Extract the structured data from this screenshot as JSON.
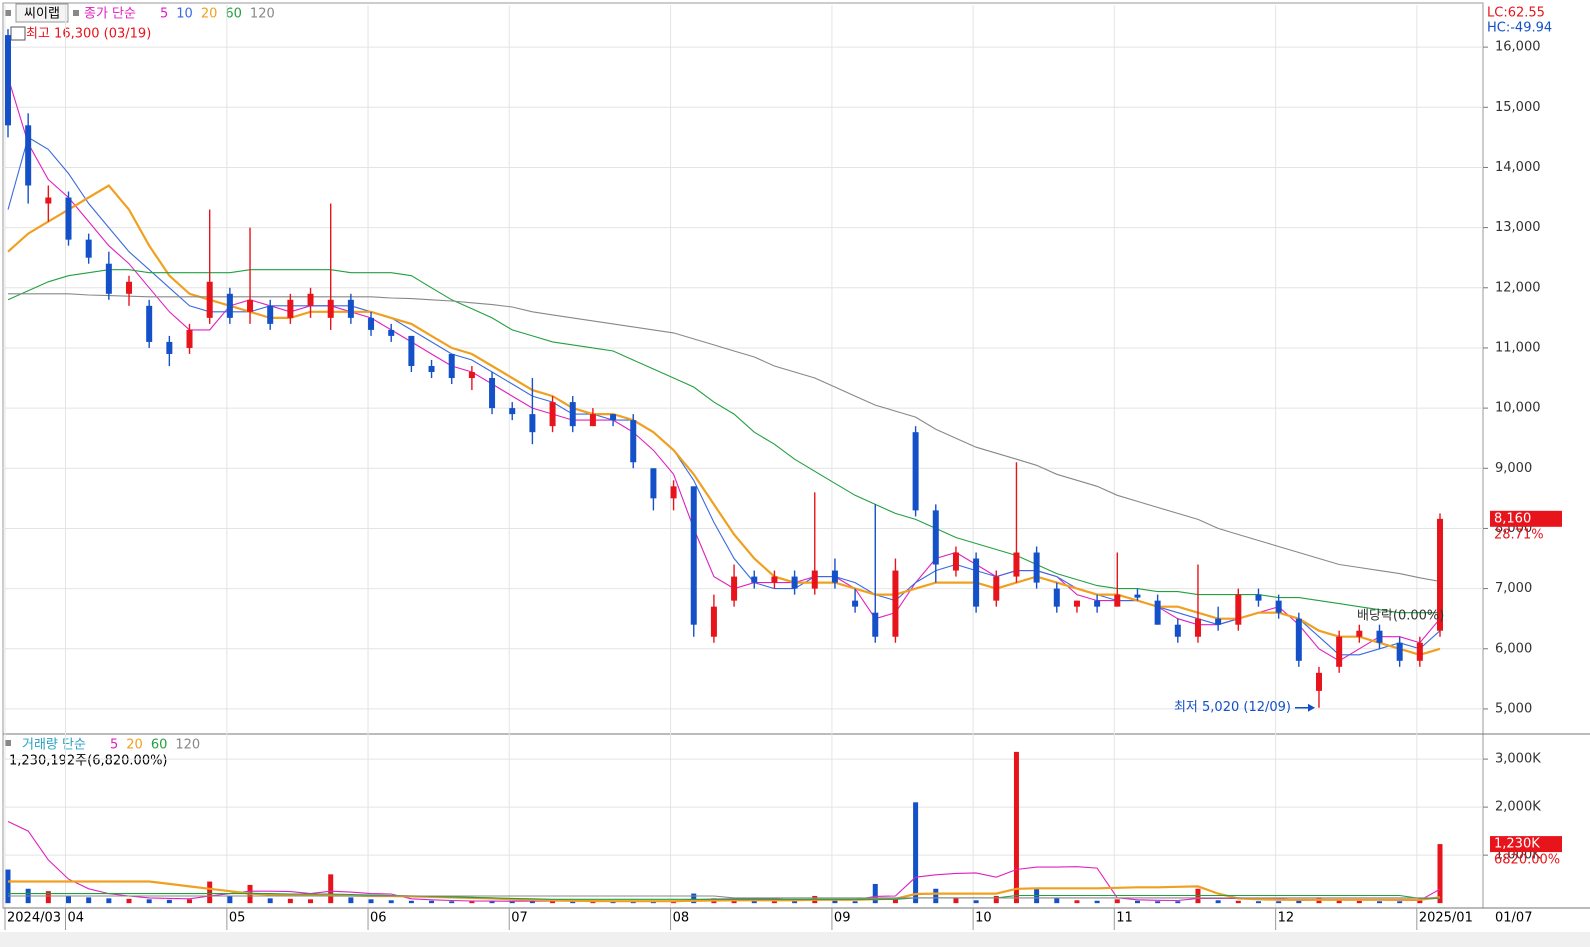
{
  "chart_data": {
    "type": "candlestick",
    "title": "씨이랩",
    "legend_label": "종가 단순",
    "categories": [
      "2024/03",
      null,
      null,
      "04",
      null,
      null,
      null,
      null,
      null,
      null,
      null,
      "05",
      null,
      null,
      null,
      null,
      null,
      null,
      "06",
      null,
      null,
      null,
      null,
      null,
      null,
      "07",
      null,
      null,
      null,
      null,
      null,
      null,
      null,
      "08",
      null,
      null,
      null,
      null,
      null,
      null,
      null,
      "09",
      null,
      null,
      null,
      null,
      null,
      null,
      "10",
      null,
      null,
      null,
      null,
      null,
      null,
      "11",
      null,
      null,
      null,
      null,
      null,
      null,
      null,
      "12",
      null,
      null,
      null,
      null,
      null,
      null,
      "2025/01",
      null
    ],
    "current_date": "01/07",
    "up_color": "#e8141b",
    "down_color": "#1450c8",
    "open": [
      16200,
      14700,
      13400,
      13500,
      12800,
      12400,
      11900,
      11700,
      11100,
      11000,
      11500,
      11900,
      11600,
      11700,
      11500,
      11700,
      11500,
      11800,
      11500,
      11300,
      11200,
      10700,
      10900,
      10500,
      10500,
      10000,
      9900,
      9700,
      10100,
      9700,
      9900,
      9800,
      9000,
      8500,
      8700,
      6200,
      6800,
      7200,
      7100,
      7200,
      7000,
      7300,
      6800,
      6600,
      6200,
      9600,
      8300,
      7300,
      7500,
      6800,
      7200,
      7600,
      7000,
      6700,
      6800,
      6700,
      6900,
      6800,
      6400,
      6200,
      6500,
      6400,
      6900,
      6800,
      6500,
      5300,
      5700,
      6200,
      6300,
      6100,
      5800,
      6300
    ],
    "high": [
      16300,
      14900,
      13700,
      13600,
      12900,
      12600,
      12200,
      11800,
      11200,
      11400,
      13300,
      12000,
      13000,
      11800,
      11900,
      12000,
      13400,
      11900,
      11600,
      11400,
      11200,
      10800,
      10900,
      10700,
      10600,
      10100,
      10500,
      10200,
      10200,
      10000,
      9900,
      9900,
      9000,
      8800,
      8700,
      6900,
      7400,
      7300,
      7300,
      7300,
      8600,
      7500,
      7000,
      8400,
      7500,
      9700,
      8400,
      7700,
      7600,
      7300,
      9100,
      7700,
      7100,
      6800,
      6900,
      7600,
      7000,
      6900,
      6500,
      7400,
      6700,
      7000,
      7000,
      6900,
      6600,
      5700,
      6300,
      6400,
      6400,
      6200,
      6200,
      8250
    ],
    "low": [
      14500,
      13400,
      13100,
      12700,
      12400,
      11800,
      11700,
      11000,
      10700,
      10900,
      11400,
      11400,
      11400,
      11300,
      11400,
      11500,
      11300,
      11400,
      11200,
      11100,
      10600,
      10500,
      10400,
      10300,
      9900,
      9800,
      9400,
      9600,
      9600,
      9700,
      9700,
      9000,
      8300,
      8300,
      6200,
      6100,
      6700,
      7000,
      7000,
      6900,
      6900,
      7000,
      6600,
      6100,
      6100,
      8200,
      7100,
      7200,
      6600,
      6700,
      7100,
      7000,
      6600,
      6600,
      6600,
      6700,
      6800,
      6400,
      6100,
      6100,
      6300,
      6300,
      6700,
      6500,
      5700,
      5020,
      5600,
      6100,
      6000,
      5700,
      5700,
      6200
    ],
    "close": [
      14700,
      13700,
      13500,
      12800,
      12500,
      11900,
      12100,
      11100,
      10900,
      11300,
      12100,
      11500,
      11800,
      11400,
      11800,
      11900,
      11800,
      11500,
      11300,
      11200,
      10700,
      10600,
      10500,
      10600,
      10000,
      9900,
      9600,
      10100,
      9700,
      9900,
      9800,
      9100,
      8500,
      8700,
      6400,
      6700,
      7200,
      7100,
      7200,
      7000,
      7300,
      7100,
      6700,
      6200,
      7300,
      8300,
      7400,
      7600,
      6700,
      7200,
      7600,
      7100,
      6700,
      6800,
      6700,
      6900,
      6850,
      6400,
      6200,
      6500,
      6400,
      6900,
      6800,
      6600,
      5800,
      5600,
      6200,
      6300,
      6100,
      5800,
      6100,
      8160
    ],
    "series": [
      {
        "name": 5,
        "color": "#e020c0",
        "values": [
          15500,
          14400,
          13800,
          13500,
          13100,
          12700,
          12400,
          12000,
          11600,
          11300,
          11300,
          11700,
          11800,
          11700,
          11600,
          11700,
          11700,
          11600,
          11500,
          11300,
          11100,
          10900,
          10700,
          10600,
          10400,
          10200,
          10000,
          9900,
          9800,
          9800,
          9800,
          9600,
          9300,
          8900,
          8000,
          7200,
          7000,
          7100,
          7100,
          7100,
          7200,
          7200,
          7000,
          6500,
          6600,
          7100,
          7500,
          7600,
          7400,
          7200,
          7300,
          7300,
          7200,
          6900,
          6800,
          6800,
          6800,
          6700,
          6500,
          6400,
          6400,
          6500,
          6600,
          6700,
          6400,
          6000,
          5800,
          6000,
          6200,
          6200,
          6100,
          6500
        ]
      },
      {
        "name": 10,
        "color": "#3a6ae0",
        "values": [
          13300,
          14500,
          14300,
          13900,
          13400,
          13000,
          12600,
          12300,
          12000,
          11700,
          11600,
          11600,
          11600,
          11700,
          11700,
          11700,
          11700,
          11700,
          11600,
          11500,
          11300,
          11100,
          10900,
          10800,
          10600,
          10400,
          10200,
          10100,
          9900,
          9900,
          9800,
          9800,
          9600,
          9300,
          8800,
          8100,
          7500,
          7100,
          7000,
          7000,
          7200,
          7200,
          7100,
          6900,
          6800,
          7100,
          7300,
          7400,
          7300,
          7200,
          7300,
          7300,
          7200,
          7000,
          6900,
          6800,
          6800,
          6700,
          6600,
          6500,
          6400,
          6500,
          6600,
          6600,
          6500,
          6200,
          5900,
          5900,
          6000,
          6100,
          6000,
          6300
        ]
      },
      {
        "name": 20,
        "color": "#f0a020",
        "values": [
          12600,
          12900,
          13100,
          13300,
          13500,
          13700,
          13300,
          12700,
          12200,
          11900,
          11800,
          11700,
          11600,
          11500,
          11500,
          11600,
          11600,
          11600,
          11600,
          11500,
          11400,
          11200,
          11000,
          10900,
          10700,
          10500,
          10300,
          10200,
          10000,
          9900,
          9900,
          9800,
          9600,
          9300,
          8900,
          8400,
          7900,
          7500,
          7200,
          7100,
          7100,
          7100,
          7000,
          6900,
          6900,
          7000,
          7100,
          7100,
          7100,
          7000,
          7100,
          7200,
          7100,
          7000,
          6900,
          6900,
          6800,
          6700,
          6700,
          6600,
          6500,
          6500,
          6600,
          6600,
          6500,
          6300,
          6200,
          6200,
          6100,
          6000,
          5900,
          6000
        ]
      },
      {
        "name": 60,
        "color": "#22a040",
        "values": [
          11800,
          11950,
          12100,
          12200,
          12250,
          12300,
          12300,
          12250,
          12250,
          12250,
          12250,
          12250,
          12300,
          12300,
          12300,
          12300,
          12300,
          12250,
          12250,
          12250,
          12200,
          12000,
          11800,
          11650,
          11500,
          11300,
          11200,
          11100,
          11050,
          11000,
          10950,
          10800,
          10650,
          10500,
          10350,
          10100,
          9900,
          9600,
          9400,
          9150,
          8950,
          8750,
          8550,
          8400,
          8250,
          8150,
          8000,
          7850,
          7750,
          7650,
          7550,
          7400,
          7250,
          7150,
          7050,
          7000,
          7000,
          6950,
          6950,
          6900,
          6900,
          6900,
          6900,
          6850,
          6850,
          6800,
          6750,
          6700,
          6650,
          6600,
          6600,
          6600
        ]
      },
      {
        "name": 120,
        "color": "#888888",
        "values": [
          11900,
          11900,
          11900,
          11900,
          11880,
          11870,
          11860,
          11850,
          11850,
          11850,
          11850,
          11850,
          11850,
          11850,
          11850,
          11850,
          11850,
          11850,
          11850,
          11830,
          11820,
          11800,
          11780,
          11750,
          11720,
          11680,
          11600,
          11550,
          11500,
          11450,
          11400,
          11350,
          11300,
          11250,
          11150,
          11050,
          10950,
          10850,
          10700,
          10600,
          10500,
          10350,
          10200,
          10050,
          9950,
          9850,
          9650,
          9500,
          9350,
          9250,
          9150,
          9050,
          8900,
          8800,
          8700,
          8550,
          8450,
          8350,
          8250,
          8150,
          8000,
          7900,
          7800,
          7700,
          7600,
          7500,
          7400,
          7350,
          7300,
          7250,
          7180,
          7120
        ]
      }
    ],
    "ylim": [
      4600,
      16700
    ],
    "yticks": [
      {
        "value": 5000,
        "label": "5,000"
      },
      {
        "value": 6000,
        "label": "6,000"
      },
      {
        "value": 7000,
        "label": "7,000"
      },
      {
        "value": 8000,
        "label": "8,000"
      },
      {
        "value": 9000,
        "label": "9,000"
      },
      {
        "value": 10000,
        "label": "10,000"
      },
      {
        "value": 11000,
        "label": "11,000"
      },
      {
        "value": 12000,
        "label": "12,000"
      },
      {
        "value": 13000,
        "label": "13,000"
      },
      {
        "value": 14000,
        "label": "14,000"
      },
      {
        "value": 15000,
        "label": "15,000"
      },
      {
        "value": 16000,
        "label": "16,000"
      }
    ],
    "grid": true,
    "high_note": "최고 16,300 (03/19)",
    "low_note": "최저 5,020 (12/09)",
    "dividend_note": "배당락(0.00%)",
    "lc": "LC:62.55",
    "hc": "HC:-49.94",
    "price_tag": "8,160",
    "change_tag": "28.71%",
    "volume": {
      "legend_label": "거래량 단순",
      "note": "1,230,192주(6,820.00%)",
      "values": [
        700,
        300,
        250,
        150,
        120,
        100,
        90,
        80,
        70,
        80,
        450,
        150,
        380,
        100,
        90,
        80,
        600,
        120,
        80,
        60,
        50,
        50,
        40,
        40,
        40,
        40,
        50,
        40,
        40,
        30,
        30,
        30,
        40,
        50,
        200,
        100,
        60,
        50,
        40,
        40,
        150,
        60,
        40,
        400,
        100,
        2100,
        300,
        100,
        60,
        150,
        3150,
        300,
        100,
        60,
        50,
        80,
        50,
        40,
        40,
        300,
        60,
        50,
        40,
        40,
        80,
        120,
        60,
        50,
        40,
        40,
        60,
        1230
      ],
      "series": [
        {
          "name": 5,
          "color": "#e020c0",
          "values": [
            1700,
            1500,
            900,
            500,
            300,
            200,
            150,
            110,
            100,
            90,
            150,
            200,
            250,
            250,
            240,
            200,
            250,
            230,
            200,
            190,
            90,
            70,
            55,
            45,
            42,
            40,
            42,
            42,
            42,
            40,
            38,
            34,
            34,
            36,
            70,
            85,
            90,
            90,
            90,
            60,
            70,
            70,
            70,
            140,
            150,
            540,
            590,
            620,
            630,
            540,
            700,
            750,
            750,
            760,
            730,
            110,
            70,
            60,
            55,
            100,
            100,
            100,
            100,
            100,
            55,
            65,
            70,
            70,
            65,
            60,
            55,
            290
          ]
        },
        {
          "name": 20,
          "color": "#f0a020",
          "values": [
            450,
            450,
            450,
            450,
            450,
            450,
            450,
            450,
            400,
            350,
            300,
            250,
            200,
            180,
            170,
            170,
            160,
            160,
            150,
            150,
            140,
            130,
            120,
            110,
            100,
            80,
            70,
            60,
            50,
            45,
            40,
            40,
            40,
            40,
            50,
            55,
            60,
            60,
            60,
            60,
            70,
            70,
            70,
            85,
            90,
            190,
            200,
            200,
            200,
            200,
            300,
            310,
            310,
            310,
            310,
            320,
            330,
            330,
            340,
            350,
            200,
            100,
            80,
            70,
            70,
            70,
            70,
            70,
            70,
            70,
            70,
            120
          ]
        },
        {
          "name": 60,
          "color": "#22a040",
          "values": [
            200,
            200,
            200,
            200,
            200,
            200,
            200,
            200,
            200,
            200,
            200,
            200,
            200,
            200,
            190,
            190,
            190,
            180,
            170,
            160,
            150,
            140,
            130,
            120,
            110,
            100,
            90,
            80,
            80,
            80,
            80,
            80,
            80,
            80,
            80,
            80,
            80,
            80,
            80,
            80,
            80,
            80,
            80,
            80,
            80,
            110,
            110,
            110,
            110,
            110,
            160,
            160,
            160,
            160,
            160,
            160,
            160,
            160,
            160,
            160,
            160,
            160,
            160,
            160,
            160,
            160,
            160,
            160,
            160,
            160,
            100,
            100
          ]
        },
        {
          "name": 120,
          "color": "#888888",
          "values": [
            150,
            150,
            150,
            150,
            150,
            150,
            150,
            150,
            150,
            150,
            150,
            150,
            150,
            150,
            150,
            150,
            150,
            150,
            150,
            150,
            150,
            150,
            150,
            150,
            150,
            150,
            150,
            150,
            150,
            150,
            150,
            150,
            150,
            150,
            150,
            150,
            110,
            110,
            110,
            110,
            110,
            110,
            110,
            110,
            110,
            110,
            110,
            110,
            110,
            110,
            110,
            110,
            110,
            110,
            110,
            110,
            110,
            110,
            110,
            110,
            110,
            110,
            110,
            110,
            110,
            110,
            110,
            110,
            110,
            110,
            110,
            110
          ]
        }
      ],
      "ylim": [
        -80,
        3460
      ],
      "yticks": [
        {
          "value": 1000,
          "label": "1,000K"
        },
        {
          "value": 2000,
          "label": "2,000K"
        },
        {
          "value": 3000,
          "label": "3,000K"
        }
      ],
      "vol_tag": "1,230K",
      "vol_change_tag": "6820.00%"
    }
  }
}
